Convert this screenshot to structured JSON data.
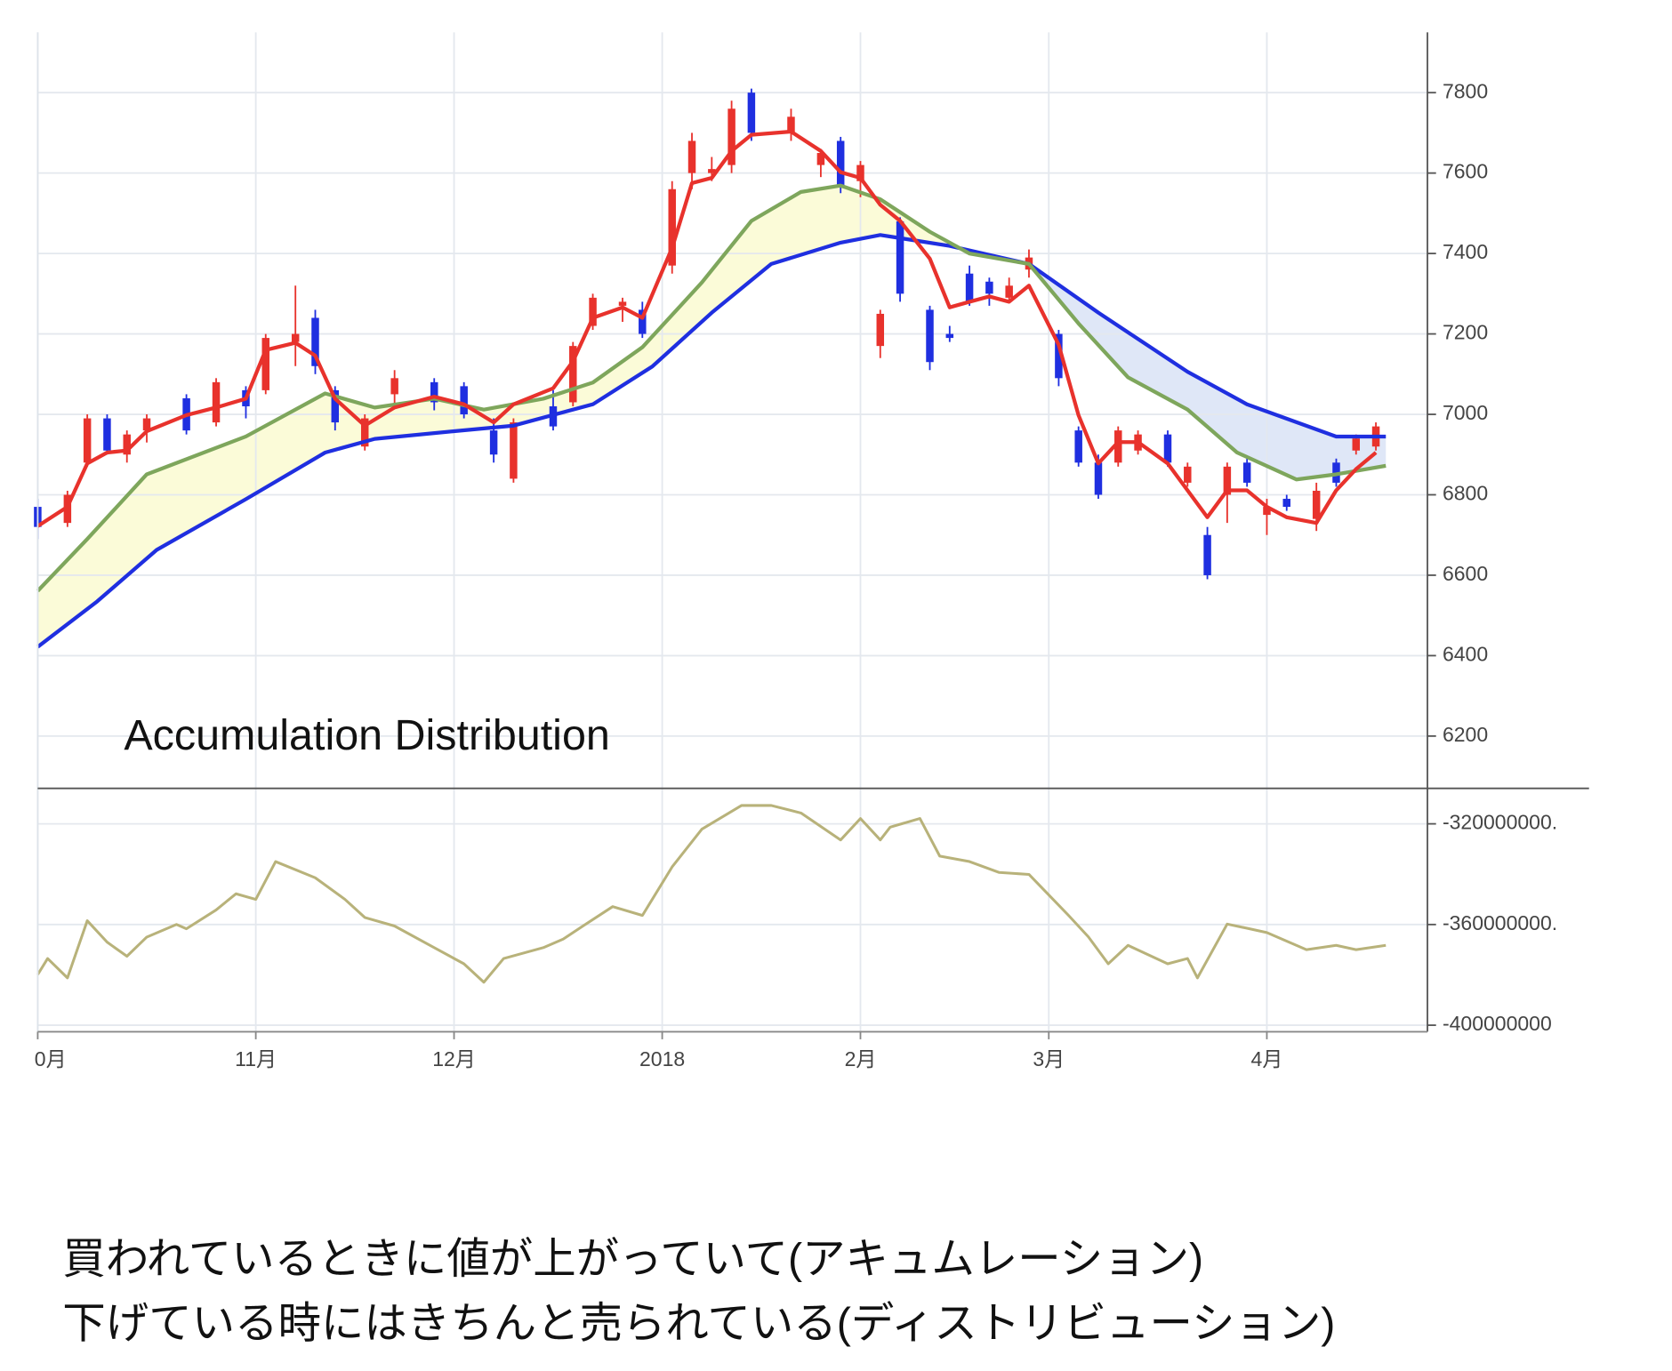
{
  "chart_data": [
    {
      "type": "candlestick",
      "annotation": "Accumulation Distribution",
      "x": [
        0,
        3,
        5,
        7,
        9,
        11,
        15,
        18,
        21,
        23,
        26,
        28,
        30,
        33,
        36,
        40,
        43,
        46,
        48,
        52,
        54,
        56,
        59,
        61,
        64,
        66,
        68,
        70,
        72,
        76,
        79,
        81,
        83,
        85,
        87,
        90,
        92,
        94,
        96,
        98,
        100,
        103,
        105,
        107,
        109,
        111,
        114,
        116,
        118,
        120,
        122,
        124,
        126,
        129,
        131,
        133,
        135
      ],
      "open": [
        6770,
        6730,
        6880,
        6990,
        6900,
        6960,
        7040,
        6980,
        7060,
        7060,
        7180,
        7240,
        7060,
        6920,
        7050,
        7080,
        7070,
        6960,
        6840,
        7020,
        7030,
        7220,
        7270,
        7260,
        7370,
        7600,
        7600,
        7620,
        7800,
        7700,
        7620,
        7680,
        7580,
        7170,
        7480,
        7260,
        7200,
        7350,
        7330,
        7290,
        7360,
        7200,
        6960,
        6880,
        6880,
        6910,
        6950,
        6830,
        6700,
        6800,
        6880,
        6750,
        6790,
        6740,
        6880,
        6910,
        6920
      ],
      "high": [
        6790,
        6810,
        7000,
        7000,
        6960,
        7000,
        7050,
        7090,
        7070,
        7200,
        7320,
        7260,
        7070,
        7000,
        7110,
        7090,
        7080,
        6990,
        6990,
        7060,
        7180,
        7300,
        7290,
        7280,
        7580,
        7700,
        7640,
        7780,
        7810,
        7760,
        7660,
        7690,
        7630,
        7260,
        7490,
        7270,
        7220,
        7370,
        7340,
        7340,
        7410,
        7210,
        6970,
        6900,
        6970,
        6960,
        6960,
        6880,
        6720,
        6880,
        6890,
        6790,
        6800,
        6830,
        6890,
        6950,
        6980
      ],
      "low": [
        6690,
        6720,
        6870,
        6900,
        6880,
        6930,
        6950,
        6970,
        6990,
        7050,
        7120,
        7100,
        6960,
        6910,
        7020,
        7010,
        6990,
        6880,
        6830,
        6960,
        7020,
        7210,
        7230,
        7190,
        7350,
        7560,
        7580,
        7600,
        7680,
        7680,
        7590,
        7550,
        7540,
        7140,
        7280,
        7110,
        7180,
        7270,
        7270,
        7280,
        7340,
        7070,
        6870,
        6790,
        6870,
        6900,
        6870,
        6820,
        6590,
        6730,
        6820,
        6700,
        6760,
        6710,
        6820,
        6900,
        6910
      ],
      "close": [
        6720,
        6800,
        6990,
        6910,
        6950,
        6990,
        6960,
        7080,
        7020,
        7190,
        7200,
        7120,
        6980,
        6990,
        7090,
        7030,
        7000,
        6900,
        6980,
        6970,
        7170,
        7290,
        7280,
        7200,
        7560,
        7680,
        7610,
        7760,
        7700,
        7740,
        7650,
        7570,
        7620,
        7250,
        7300,
        7130,
        7190,
        7280,
        7300,
        7320,
        7390,
        7090,
        6880,
        6800,
        6960,
        6950,
        6880,
        6870,
        6600,
        6870,
        6830,
        6770,
        6770,
        6810,
        6830,
        6940,
        6970
      ],
      "up_color": "#e8322c",
      "down_color": "#1f2fe0",
      "series": [
        {
          "color": "#e8322c",
          "x": [
            0,
            3,
            5,
            7,
            9,
            11,
            15,
            18,
            21,
            23,
            26,
            28,
            30,
            33,
            36,
            40,
            43,
            46,
            48,
            52,
            54,
            56,
            59,
            61,
            64,
            66,
            68,
            70,
            72,
            76,
            79,
            81,
            83,
            85,
            87,
            90,
            92,
            94,
            96,
            98,
            100,
            103,
            105,
            107,
            109,
            111,
            114,
            116,
            118,
            120,
            122,
            124,
            126,
            129,
            131,
            133,
            135
          ],
          "values": [
            6722,
            6770,
            6878,
            6905,
            6910,
            6958,
            6998,
            7017,
            7039,
            7160,
            7178,
            7146,
            7039,
            6972,
            7017,
            7044,
            7025,
            6980,
            7025,
            7065,
            7132,
            7240,
            7266,
            7240,
            7414,
            7575,
            7588,
            7655,
            7695,
            7703,
            7655,
            7602,
            7588,
            7521,
            7481,
            7387,
            7266,
            7280,
            7293,
            7280,
            7320,
            7173,
            6998,
            6878,
            6931,
            6931,
            6878,
            6811,
            6744,
            6811,
            6811,
            6770,
            6744,
            6730,
            6811,
            6864,
            6905
          ]
        },
        {
          "color": "#7ea65c",
          "x": [
            0,
            5,
            11,
            21,
            29,
            34,
            40,
            45,
            51,
            56,
            61,
            67,
            72,
            77,
            81,
            85,
            90,
            94,
            100,
            105,
            110,
            116,
            121,
            127,
            131,
            136
          ],
          "values": [
            6561,
            6690,
            6851,
            6945,
            7052,
            7017,
            7039,
            7012,
            7039,
            7079,
            7167,
            7328,
            7481,
            7553,
            7569,
            7535,
            7454,
            7400,
            7374,
            7226,
            7092,
            7012,
            6905,
            6838,
            6851,
            6872
          ]
        },
        {
          "color": "#1f2fe0",
          "x": [
            0,
            6,
            12,
            21,
            29,
            34,
            42,
            48,
            56,
            62,
            68,
            74,
            81,
            85,
            92,
            100,
            107,
            116,
            122,
            131,
            136
          ],
          "values": [
            6422,
            6535,
            6663,
            6789,
            6905,
            6939,
            6958,
            6972,
            7025,
            7119,
            7253,
            7374,
            7427,
            7446,
            7419,
            7374,
            7253,
            7106,
            7025,
            6945,
            6945
          ]
        }
      ],
      "band_colors": [
        "#fbfbd8",
        "#dfe7f7"
      ],
      "xlim": [
        0,
        140.2
      ],
      "ylim": [
        6070,
        7950
      ],
      "yticks": [
        6200,
        6400,
        6600,
        6800,
        7000,
        7200,
        7400,
        7600,
        7800
      ],
      "grid": true
    },
    {
      "type": "line",
      "x": [
        0,
        1,
        3,
        5,
        7,
        9,
        11,
        14,
        15,
        18,
        20,
        22,
        24,
        28,
        31,
        33,
        36,
        40,
        43,
        45,
        47,
        51,
        53,
        55,
        58,
        61,
        64,
        67,
        71,
        74,
        77,
        81,
        83,
        85,
        86,
        89,
        91,
        94,
        97,
        100,
        104,
        106,
        108,
        110,
        114,
        116,
        117,
        120,
        122,
        124,
        128,
        131,
        133,
        136
      ],
      "values": [
        -379900000,
        -373500000,
        -381200000,
        -358500000,
        -367000000,
        -372600000,
        -365000000,
        -360000000,
        -361700000,
        -354200000,
        -347800000,
        -350000000,
        -335000000,
        -341400000,
        -350000000,
        -357200000,
        -360600000,
        -369200000,
        -375600000,
        -382900000,
        -373500000,
        -369200000,
        -365800000,
        -360600000,
        -352900000,
        -356400000,
        -337100000,
        -322100000,
        -312700000,
        -312700000,
        -315700000,
        -326400000,
        -317900000,
        -326400000,
        -321300000,
        -317900000,
        -332800000,
        -335000000,
        -339300000,
        -340100000,
        -356400000,
        -364900000,
        -375600000,
        -368300000,
        -375600000,
        -373500000,
        -381200000,
        -359800000,
        -361500000,
        -363200000,
        -370000000,
        -368300000,
        -370000000,
        -368300000
      ],
      "color": "#b8b27a",
      "xlim": [
        0,
        140.2
      ],
      "ylim": [
        -402600000,
        -305900000
      ],
      "yticks": [
        {
          "value": -400000000,
          "label": "-400000000"
        },
        {
          "value": -360000000,
          "label": "-360000000."
        },
        {
          "value": -320000000,
          "label": "-320000000."
        }
      ],
      "xticks": [
        {
          "value": 0,
          "label": "0月"
        },
        {
          "value": 22,
          "label": "11月"
        },
        {
          "value": 42,
          "label": "12月"
        },
        {
          "value": 63,
          "label": "2018"
        },
        {
          "value": 83,
          "label": "2月"
        },
        {
          "value": 102,
          "label": "3月"
        },
        {
          "value": 124,
          "label": "4月"
        }
      ],
      "grid": true
    }
  ],
  "caption": [
    "買われているときに値が上がっていて(アキュムレーション)",
    "下げている時にはきちんと売られている(ディストリビューション)"
  ]
}
